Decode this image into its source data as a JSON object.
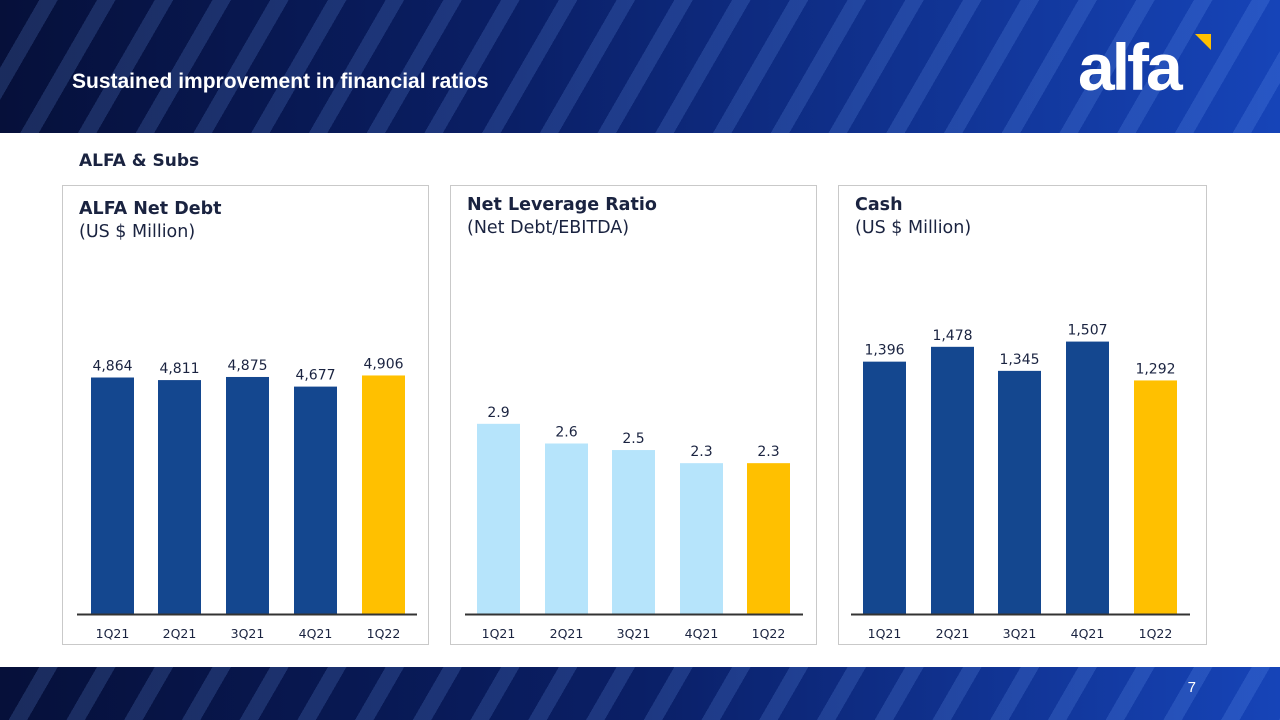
{
  "header": {
    "title": "Sustained improvement in financial ratios",
    "logo_text": "alfa"
  },
  "section": {
    "title": "ALFA & Subs"
  },
  "footer": {
    "page_number": "7"
  },
  "colors": {
    "dark_blue": "#14478f",
    "light_blue": "#b6e4fb",
    "highlight_gold": "#ffc000",
    "text": "#1a2340",
    "axis": "#333333"
  },
  "chart_data": [
    {
      "type": "bar",
      "title": "ALFA Net Debt",
      "subtitle": "(US $ Million)",
      "categories": [
        "1Q21",
        "2Q21",
        "3Q21",
        "4Q21",
        "1Q22"
      ],
      "values": [
        4864,
        4811,
        4875,
        4677,
        4906
      ],
      "labels": [
        "4,864",
        "4,811",
        "4,875",
        "4,677",
        "4,906"
      ],
      "ylim": [
        0,
        5800
      ],
      "grid": false,
      "bar_colors": [
        "#14478f",
        "#14478f",
        "#14478f",
        "#14478f",
        "#ffc000"
      ]
    },
    {
      "type": "bar",
      "title": "Net Leverage Ratio",
      "subtitle": "(Net Debt/EBITDA)",
      "categories": [
        "1Q21",
        "2Q21",
        "3Q21",
        "4Q21",
        "1Q22"
      ],
      "values": [
        2.9,
        2.6,
        2.5,
        2.3,
        2.3
      ],
      "labels": [
        "2.9",
        "2.6",
        "2.5",
        "2.3",
        "2.3"
      ],
      "ylim": [
        0,
        4.3
      ],
      "grid": false,
      "bar_colors": [
        "#b6e4fb",
        "#b6e4fb",
        "#b6e4fb",
        "#b6e4fb",
        "#ffc000"
      ]
    },
    {
      "type": "bar",
      "title": "Cash",
      "subtitle": "(US $ Million)",
      "categories": [
        "1Q21",
        "2Q21",
        "3Q21",
        "4Q21",
        "1Q22"
      ],
      "values": [
        1396,
        1478,
        1345,
        1507,
        1292
      ],
      "labels": [
        "1,396",
        "1,478",
        "1,345",
        "1,507",
        "1,292"
      ],
      "ylim": [
        0,
        1560
      ],
      "grid": false,
      "bar_colors": [
        "#14478f",
        "#14478f",
        "#14478f",
        "#14478f",
        "#ffc000"
      ]
    }
  ]
}
